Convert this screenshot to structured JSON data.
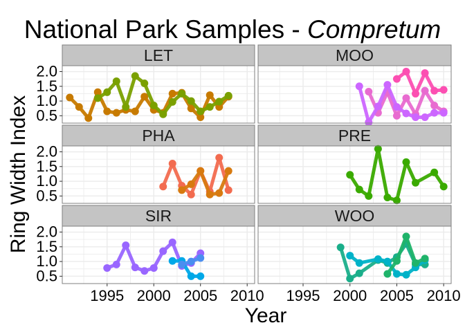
{
  "chart_data": {
    "type": "line",
    "title": "National Park Samples - ",
    "title_italic": "Compretum",
    "xlabel": "Year",
    "ylabel": "Ring Width Index",
    "xlim": [
      1990.2,
      2010.8
    ],
    "ylim": [
      0.25,
      2.2
    ],
    "x_ticks": [
      1995,
      2000,
      2005,
      2010
    ],
    "y_ticks": [
      0.5,
      1.0,
      1.5,
      2.0
    ],
    "y_tick_labels": [
      "0.5",
      "1.0",
      "1.5",
      "2.0"
    ],
    "grid": true,
    "colors": {
      "strip_bg": "#c4c4c4",
      "panel_border": "#7f7f7f",
      "grid": "#ebebeb"
    },
    "panels": [
      {
        "name": "LET",
        "series": [
          {
            "color": "#c77a00",
            "points": [
              [
                1991,
                1.12
              ],
              [
                1992,
                0.8
              ],
              [
                1993,
                0.42
              ],
              [
                1994,
                1.3
              ],
              [
                1995,
                0.65
              ],
              [
                1996,
                0.6
              ],
              [
                1997,
                0.7
              ],
              [
                1998,
                0.65
              ],
              [
                1999,
                1.15
              ],
              [
                2000,
                0.7
              ],
              [
                2001,
                0.6
              ],
              [
                2002,
                1.25
              ],
              [
                2003,
                1.28
              ],
              [
                2004,
                0.75
              ],
              [
                2005,
                0.45
              ],
              [
                2006,
                1.2
              ],
              [
                2007,
                0.8
              ],
              [
                2008,
                1.15
              ]
            ]
          },
          {
            "color": "#7aa000",
            "points": [
              [
                1994,
                1.1
              ],
              [
                1995,
                1.3
              ],
              [
                1996,
                1.67
              ],
              [
                1997,
                0.8
              ],
              [
                1998,
                1.85
              ],
              [
                1999,
                1.6
              ],
              [
                2000,
                0.85
              ],
              [
                2001,
                0.55
              ],
              [
                2002,
                0.97
              ],
              [
                2003,
                1.25
              ],
              [
                2004,
                1.0
              ],
              [
                2005,
                0.65
              ],
              [
                2006,
                0.8
              ],
              [
                2007,
                0.98
              ],
              [
                2008,
                1.18
              ]
            ]
          }
        ]
      },
      {
        "name": "MOO",
        "series": [
          {
            "color": "#fc4fb2",
            "points": [
              [
                2005,
                1.75
              ],
              [
                2006,
                2.0
              ],
              [
                2007,
                1.25
              ],
              [
                2008,
                1.95
              ],
              [
                2009,
                1.35
              ],
              [
                2010,
                1.38
              ]
            ]
          },
          {
            "color": "#e86bd0",
            "points": [
              [
                2002,
                1.32
              ],
              [
                2003,
                0.6
              ],
              [
                2004,
                1.3
              ],
              [
                2005,
                0.5
              ],
              [
                2006,
                1.1
              ],
              [
                2007,
                0.55
              ],
              [
                2008,
                1.35
              ],
              [
                2009,
                0.85
              ],
              [
                2010,
                0.65
              ]
            ]
          },
          {
            "color": "#cc66ff",
            "points": [
              [
                2001,
                1.5
              ],
              [
                2002,
                0.28
              ],
              [
                2003,
                0.82
              ],
              [
                2004,
                1.55
              ],
              [
                2005,
                0.8
              ],
              [
                2006,
                0.58
              ],
              [
                2007,
                0.45
              ],
              [
                2008,
                0.45
              ],
              [
                2009,
                0.6
              ],
              [
                2010,
                0.6
              ]
            ]
          }
        ]
      },
      {
        "name": "PHA",
        "series": [
          {
            "color": "#f26b4f",
            "points": [
              [
                2001,
                0.82
              ],
              [
                2002,
                1.6
              ],
              [
                2003,
                0.85
              ],
              [
                2004,
                0.55
              ],
              [
                2005,
                1.35
              ],
              [
                2006,
                0.65
              ],
              [
                2007,
                1.8
              ],
              [
                2008,
                0.7
              ]
            ]
          },
          {
            "color": "#d77a10",
            "points": [
              [
                2003,
                0.7
              ],
              [
                2004,
                0.9
              ],
              [
                2005,
                1.35
              ],
              [
                2006,
                0.55
              ],
              [
                2007,
                0.6
              ],
              [
                2008,
                1.35
              ]
            ]
          }
        ]
      },
      {
        "name": "PRE",
        "series": [
          {
            "color": "#3aaa00",
            "points": [
              [
                2000,
                1.22
              ],
              [
                2001,
                0.72
              ],
              [
                2002,
                0.5
              ],
              [
                2003,
                2.1
              ],
              [
                2004,
                0.45
              ],
              [
                2005,
                0.35
              ],
              [
                2006,
                1.65
              ],
              [
                2007,
                0.95
              ],
              [
                2009,
                1.3
              ],
              [
                2010,
                0.82
              ]
            ]
          }
        ]
      },
      {
        "name": "SIR",
        "series": [
          {
            "color": "#9966ff",
            "points": [
              [
                1995,
                0.78
              ],
              [
                1996,
                0.9
              ],
              [
                1997,
                1.55
              ],
              [
                1998,
                0.8
              ],
              [
                1999,
                0.68
              ],
              [
                2000,
                0.78
              ],
              [
                2001,
                1.35
              ],
              [
                2002,
                1.65
              ],
              [
                2003,
                0.85
              ],
              [
                2004,
                0.95
              ],
              [
                2005,
                1.28
              ]
            ]
          },
          {
            "color": "#00a8e8",
            "points": [
              [
                2002,
                1.02
              ],
              [
                2003,
                1.02
              ],
              [
                2004,
                0.5
              ],
              [
                2005,
                0.5
              ]
            ]
          },
          {
            "color": "#4a8ef0",
            "points": [
              [
                2003,
                0.9
              ],
              [
                2004,
                1.0
              ],
              [
                2005,
                1.12
              ]
            ]
          }
        ]
      },
      {
        "name": "WOO",
        "series": [
          {
            "color": "#1aae8a",
            "points": [
              [
                1999,
                1.48
              ],
              [
                2000,
                0.42
              ],
              [
                2001,
                0.6
              ],
              [
                2003,
                1.05
              ],
              [
                2004,
                0.95
              ],
              [
                2005,
                1.15
              ],
              [
                2006,
                1.6
              ],
              [
                2007,
                0.9
              ],
              [
                2008,
                0.9
              ]
            ]
          },
          {
            "color": "#00b2c8",
            "points": [
              [
                2000,
                1.2
              ],
              [
                2001,
                0.95
              ],
              [
                2003,
                1.08
              ],
              [
                2004,
                1.0
              ],
              [
                2005,
                0.58
              ],
              [
                2006,
                0.55
              ],
              [
                2007,
                0.8
              ],
              [
                2008,
                1.05
              ]
            ]
          },
          {
            "color": "#1fb36a",
            "points": [
              [
                2004,
                0.58
              ],
              [
                2005,
                1.02
              ],
              [
                2006,
                1.85
              ],
              [
                2007,
                0.95
              ],
              [
                2008,
                1.1
              ]
            ]
          }
        ]
      }
    ]
  }
}
